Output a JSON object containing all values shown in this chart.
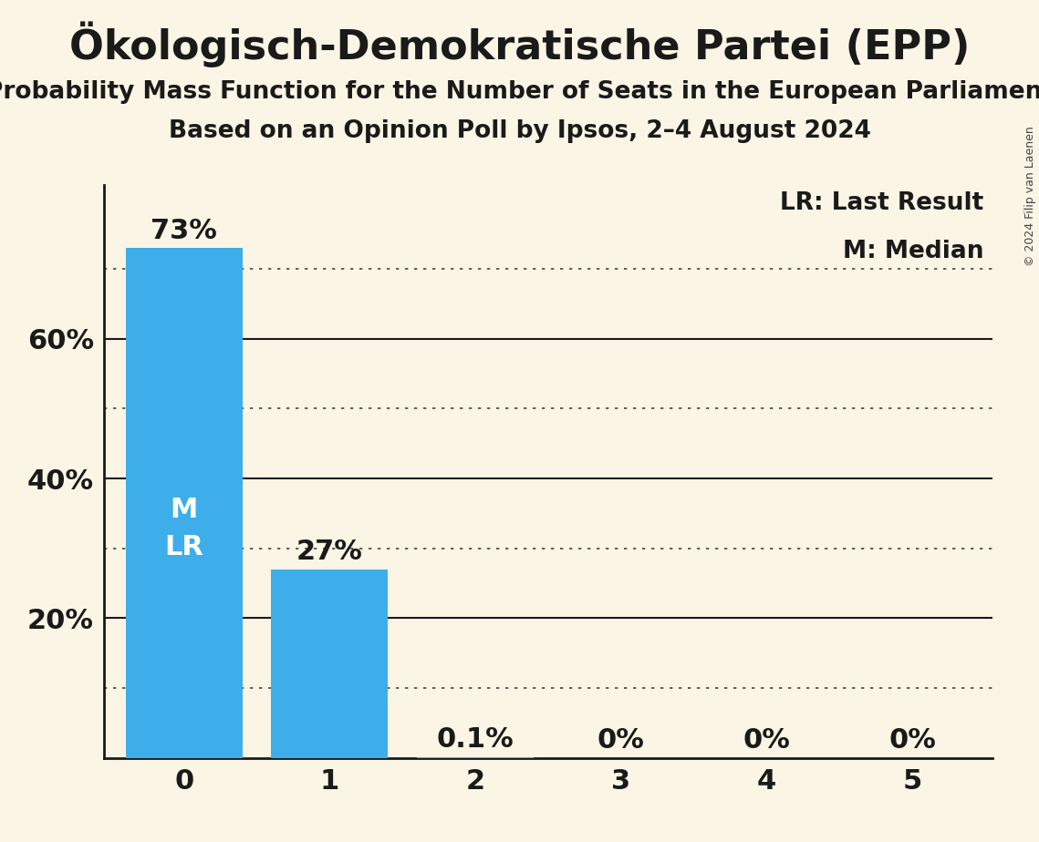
{
  "title": "Ökologisch-Demokratische Partei (EPP)",
  "subtitle1": "Probability Mass Function for the Number of Seats in the European Parliament",
  "subtitle2": "Based on an Opinion Poll by Ipsos, 2–4 August 2024",
  "copyright": "© 2024 Filip van Laenen",
  "categories": [
    0,
    1,
    2,
    3,
    4,
    5
  ],
  "values": [
    0.73,
    0.27,
    0.001,
    0.0,
    0.0,
    0.0
  ],
  "bar_labels": [
    "73%",
    "27%",
    "0.1%",
    "0%",
    "0%",
    "0%"
  ],
  "bar_color": "#3daee9",
  "background_color": "#faf5e4",
  "text_color": "#1a1a1a",
  "white": "#ffffff",
  "median": 0,
  "last_result": 0,
  "ylim": [
    0,
    0.82
  ],
  "yticks": [
    0.0,
    0.2,
    0.4,
    0.6
  ],
  "ytick_labels": [
    "",
    "20%",
    "40%",
    "60%"
  ],
  "legend_lr": "LR: Last Result",
  "legend_m": "M: Median",
  "title_fontsize": 32,
  "subtitle_fontsize": 19,
  "axis_fontsize": 22,
  "bar_label_fontsize": 22,
  "inner_label_fontsize": 22,
  "legend_fontsize": 19,
  "copyright_fontsize": 9,
  "grid_solid_color": "#1a1a1a",
  "grid_dotted_color": "#444444",
  "solid_grid_levels": [
    0.2,
    0.4,
    0.6
  ],
  "dotted_grid_levels": [
    0.1,
    0.3,
    0.5,
    0.7
  ]
}
